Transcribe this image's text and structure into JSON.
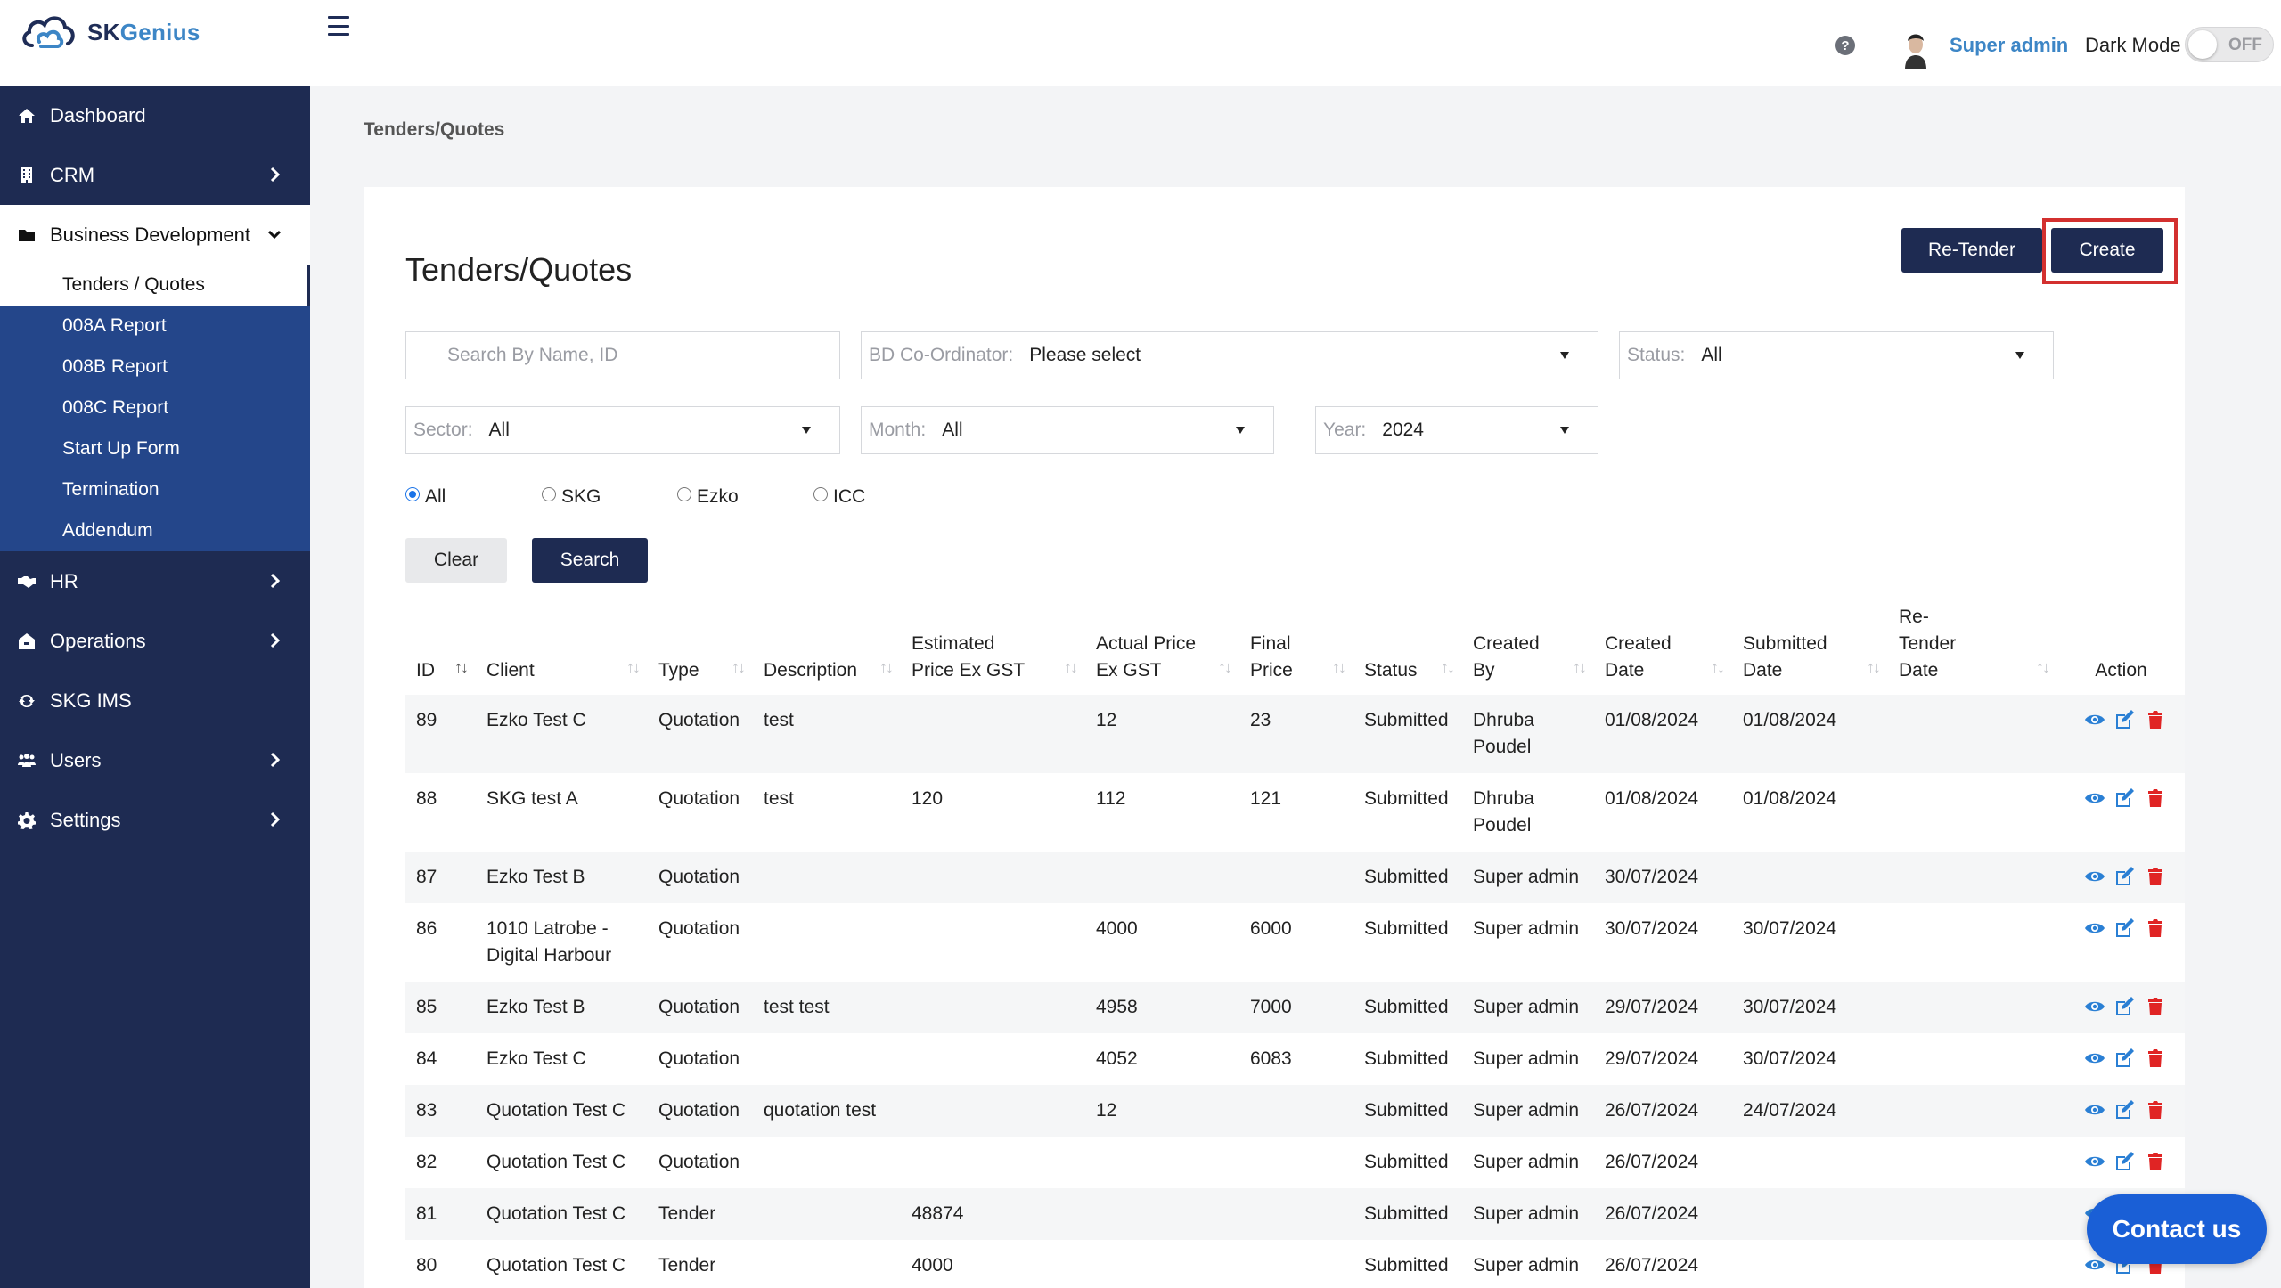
{
  "app": {
    "brand_part1": "SK",
    "brand_part2": "Genius"
  },
  "topbar": {
    "help_glyph": "?",
    "user_name": "Super admin",
    "dark_mode_label": "Dark Mode",
    "dark_mode_state": "OFF"
  },
  "sidebar": {
    "items": [
      {
        "label": "Dashboard",
        "icon": "home-icon"
      },
      {
        "label": "CRM",
        "icon": "building-icon"
      },
      {
        "label": "Business Development",
        "icon": "folder-icon"
      },
      {
        "label": "HR",
        "icon": "handshake-icon"
      },
      {
        "label": "Operations",
        "icon": "briefcase-icon"
      },
      {
        "label": "SKG IMS",
        "icon": "sync-icon"
      },
      {
        "label": "Users",
        "icon": "users-icon"
      },
      {
        "label": "Settings",
        "icon": "gear-icon"
      }
    ],
    "submenu": [
      "Tenders / Quotes",
      "008A Report",
      "008B Report",
      "008C Report",
      "Start Up Form",
      "Termination",
      "Addendum"
    ]
  },
  "breadcrumb": "Tenders/Quotes",
  "page_title": "Tenders/Quotes",
  "buttons": {
    "retender": "Re-Tender",
    "create": "Create",
    "clear": "Clear",
    "search": "Search"
  },
  "filters": {
    "search_placeholder": "Search By Name, ID",
    "bd_label": "BD Co-Ordinator:",
    "bd_value": "Please select",
    "status_label": "Status:",
    "status_value": "All",
    "sector_label": "Sector:",
    "sector_value": "All",
    "month_label": "Month:",
    "month_value": "All",
    "year_label": "Year:",
    "year_value": "2024"
  },
  "radios": [
    {
      "label": "All",
      "checked": true
    },
    {
      "label": "SKG",
      "checked": false
    },
    {
      "label": "Ezko",
      "checked": false
    },
    {
      "label": "ICC",
      "checked": false
    }
  ],
  "table": {
    "headers": {
      "id": "ID",
      "client": "Client",
      "type": "Type",
      "description": "Description",
      "est_l1": "Estimated",
      "est_l2": "Price Ex GST",
      "act_l1": "Actual Price",
      "act_l2": "Ex GST",
      "final_l1": "Final",
      "final_l2": "Price",
      "status": "Status",
      "created_by_l1": "Created",
      "created_by_l2": "By",
      "created_date_l1": "Created",
      "created_date_l2": "Date",
      "submitted_l1": "Submitted",
      "submitted_l2": "Date",
      "retender_l1": "Re-",
      "retender_l2": "Tender",
      "retender_l3": "Date",
      "action": "Action"
    },
    "rows": [
      {
        "id": "89",
        "client": "Ezko Test C",
        "type": "Quotation",
        "description": "test",
        "estimated": "",
        "actual": "12",
        "final": "23",
        "status": "Submitted",
        "created_by": "Dhruba Poudel",
        "created_date": "01/08/2024",
        "submitted_date": "01/08/2024",
        "retender_date": ""
      },
      {
        "id": "88",
        "client": "SKG test A",
        "type": "Quotation",
        "description": "test",
        "estimated": "120",
        "actual": "112",
        "final": "121",
        "status": "Submitted",
        "created_by": "Dhruba Poudel",
        "created_date": "01/08/2024",
        "submitted_date": "01/08/2024",
        "retender_date": ""
      },
      {
        "id": "87",
        "client": "Ezko Test B",
        "type": "Quotation",
        "description": "",
        "estimated": "",
        "actual": "",
        "final": "",
        "status": "Submitted",
        "created_by": "Super admin",
        "created_date": "30/07/2024",
        "submitted_date": "",
        "retender_date": ""
      },
      {
        "id": "86",
        "client": "1010 Latrobe - Digital Harbour",
        "type": "Quotation",
        "description": "",
        "estimated": "",
        "actual": "4000",
        "final": "6000",
        "status": "Submitted",
        "created_by": "Super admin",
        "created_date": "30/07/2024",
        "submitted_date": "30/07/2024",
        "retender_date": ""
      },
      {
        "id": "85",
        "client": "Ezko Test B",
        "type": "Quotation",
        "description": "test test",
        "estimated": "",
        "actual": "4958",
        "final": "7000",
        "status": "Submitted",
        "created_by": "Super admin",
        "created_date": "29/07/2024",
        "submitted_date": "30/07/2024",
        "retender_date": ""
      },
      {
        "id": "84",
        "client": "Ezko Test C",
        "type": "Quotation",
        "description": "",
        "estimated": "",
        "actual": "4052",
        "final": "6083",
        "status": "Submitted",
        "created_by": "Super admin",
        "created_date": "29/07/2024",
        "submitted_date": "30/07/2024",
        "retender_date": ""
      },
      {
        "id": "83",
        "client": "Quotation Test C",
        "type": "Quotation",
        "description": "quotation test",
        "estimated": "",
        "actual": "12",
        "final": "",
        "status": "Submitted",
        "created_by": "Super admin",
        "created_date": "26/07/2024",
        "submitted_date": "24/07/2024",
        "retender_date": ""
      },
      {
        "id": "82",
        "client": "Quotation Test C",
        "type": "Quotation",
        "description": "",
        "estimated": "",
        "actual": "",
        "final": "",
        "status": "Submitted",
        "created_by": "Super admin",
        "created_date": "26/07/2024",
        "submitted_date": "",
        "retender_date": ""
      },
      {
        "id": "81",
        "client": "Quotation Test C",
        "type": "Tender",
        "description": "",
        "estimated": "48874",
        "actual": "",
        "final": "",
        "status": "Submitted",
        "created_by": "Super admin",
        "created_date": "26/07/2024",
        "submitted_date": "",
        "retender_date": ""
      },
      {
        "id": "80",
        "client": "Quotation Test C",
        "type": "Tender",
        "description": "",
        "estimated": "4000",
        "actual": "",
        "final": "",
        "status": "Submitted",
        "created_by": "Super admin",
        "created_date": "26/07/2024",
        "submitted_date": "",
        "retender_date": ""
      }
    ]
  },
  "contact": "Contact us",
  "colors": {
    "navy": "#1e2b52",
    "sidebar_sub": "#24468a",
    "accent_blue": "#3d86c6",
    "view_icon": "#2a7fd4",
    "delete_icon": "#e02424",
    "highlight_red": "#d3302f"
  }
}
